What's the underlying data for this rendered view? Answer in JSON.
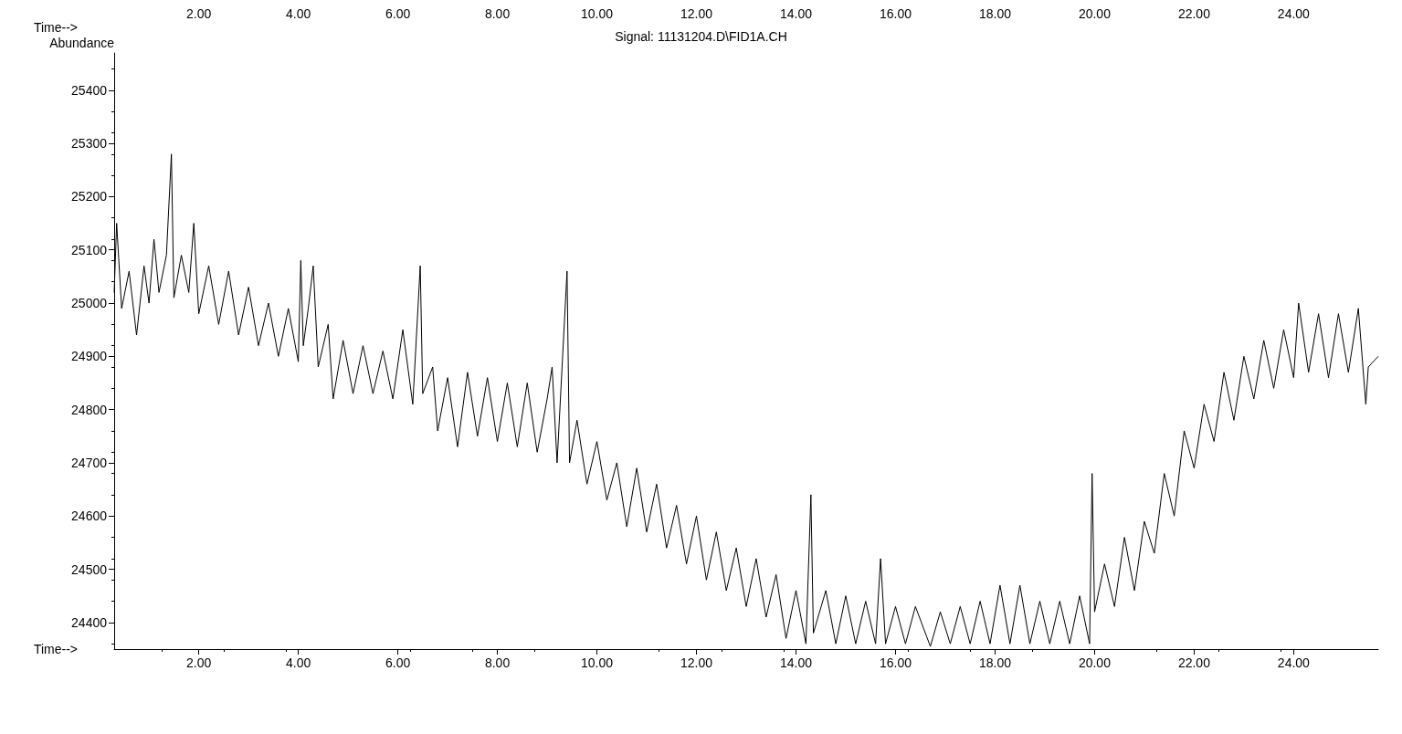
{
  "chart_data": {
    "type": "line",
    "title": "Signal: 11131204.D\\FID1A.CH",
    "xlabel": "Time-->",
    "ylabel": "Abundance",
    "x2label": "Time-->",
    "xlim": [
      0.3,
      25.7
    ],
    "ylim": [
      24350,
      25470
    ],
    "xticks": [
      {
        "value": 2,
        "label": "2.00"
      },
      {
        "value": 4,
        "label": "4.00"
      },
      {
        "value": 6,
        "label": "6.00"
      },
      {
        "value": 8,
        "label": "8.00"
      },
      {
        "value": 10,
        "label": "10.00"
      },
      {
        "value": 12,
        "label": "12.00"
      },
      {
        "value": 14,
        "label": "14.00"
      },
      {
        "value": 16,
        "label": "16.00"
      },
      {
        "value": 18,
        "label": "18.00"
      },
      {
        "value": 20,
        "label": "20.00"
      },
      {
        "value": 22,
        "label": "22.00"
      },
      {
        "value": 24,
        "label": "24.00"
      }
    ],
    "x2lim": [
      0.3,
      25.7
    ],
    "x2ticks": [
      {
        "value": 2,
        "label": "2.00"
      },
      {
        "value": 4,
        "label": "4.00"
      },
      {
        "value": 6,
        "label": "6.00"
      },
      {
        "value": 8,
        "label": "8.00"
      },
      {
        "value": 10,
        "label": "10.00"
      },
      {
        "value": 12,
        "label": "12.00"
      },
      {
        "value": 14,
        "label": "14.00"
      },
      {
        "value": 16,
        "label": "16.00"
      },
      {
        "value": 18,
        "label": "18.00"
      },
      {
        "value": 20,
        "label": "20.00"
      },
      {
        "value": 22,
        "label": "22.00"
      },
      {
        "value": 24,
        "label": "24.00"
      }
    ],
    "yticks": [
      24400,
      24500,
      24600,
      24700,
      24800,
      24900,
      25000,
      25100,
      25200,
      25300,
      25400
    ],
    "grid": false,
    "marker": "none",
    "line_style": "solid",
    "series": [
      {
        "color": "#000000",
        "x": [
          0.3,
          0.35,
          0.45,
          0.6,
          0.75,
          0.9,
          1.0,
          1.1,
          1.2,
          1.35,
          1.45,
          1.5,
          1.65,
          1.8,
          1.9,
          2.0,
          2.2,
          2.4,
          2.6,
          2.8,
          3.0,
          3.2,
          3.4,
          3.6,
          3.8,
          4.0,
          4.05,
          4.1,
          4.2,
          4.3,
          4.4,
          4.6,
          4.7,
          4.9,
          5.1,
          5.3,
          5.5,
          5.7,
          5.9,
          6.1,
          6.3,
          6.45,
          6.5,
          6.7,
          6.8,
          7.0,
          7.2,
          7.4,
          7.6,
          7.8,
          8.0,
          8.2,
          8.4,
          8.6,
          8.8,
          9.0,
          9.1,
          9.2,
          9.4,
          9.45,
          9.6,
          9.8,
          10.0,
          10.2,
          10.4,
          10.6,
          10.8,
          11.0,
          11.2,
          11.4,
          11.6,
          11.8,
          12.0,
          12.2,
          12.4,
          12.6,
          12.8,
          13.0,
          13.2,
          13.4,
          13.6,
          13.8,
          14.0,
          14.2,
          14.3,
          14.35,
          14.6,
          14.8,
          15.0,
          15.2,
          15.4,
          15.6,
          15.7,
          15.8,
          16.0,
          16.2,
          16.4,
          16.7,
          16.9,
          17.1,
          17.3,
          17.5,
          17.7,
          17.9,
          18.1,
          18.3,
          18.5,
          18.7,
          18.9,
          19.1,
          19.3,
          19.5,
          19.7,
          19.9,
          19.95,
          20.0,
          20.2,
          20.4,
          20.6,
          20.8,
          21.0,
          21.2,
          21.4,
          21.6,
          21.8,
          22.0,
          22.2,
          22.4,
          22.6,
          22.8,
          23.0,
          23.2,
          23.4,
          23.6,
          23.8,
          24.0,
          24.1,
          24.3,
          24.5,
          24.7,
          24.9,
          25.1,
          25.3,
          25.45,
          25.5,
          25.7
        ],
        "values": [
          25020,
          25150,
          24990,
          25060,
          24940,
          25070,
          25000,
          25120,
          25020,
          25090,
          25280,
          25010,
          25090,
          25020,
          25150,
          24980,
          25070,
          24960,
          25060,
          24940,
          25030,
          24920,
          25000,
          24900,
          24990,
          24890,
          25080,
          24920,
          24990,
          25070,
          24880,
          24960,
          24820,
          24930,
          24830,
          24920,
          24830,
          24910,
          24820,
          24950,
          24810,
          25070,
          24830,
          24880,
          24760,
          24860,
          24730,
          24870,
          24750,
          24860,
          24740,
          24850,
          24730,
          24850,
          24720,
          24820,
          24880,
          24700,
          25060,
          24700,
          24780,
          24660,
          24740,
          24630,
          24700,
          24580,
          24690,
          24570,
          24660,
          24540,
          24620,
          24510,
          24600,
          24480,
          24570,
          24460,
          24540,
          24430,
          24520,
          24410,
          24490,
          24370,
          24460,
          24360,
          24640,
          24380,
          24460,
          24360,
          24450,
          24360,
          24440,
          24360,
          24520,
          24360,
          24430,
          24360,
          24430,
          24355,
          24420,
          24360,
          24430,
          24360,
          24440,
          24360,
          24470,
          24360,
          24470,
          24360,
          24440,
          24360,
          24440,
          24360,
          24450,
          24360,
          24680,
          24420,
          24510,
          24430,
          24560,
          24460,
          24590,
          24530,
          24680,
          24600,
          24760,
          24690,
          24810,
          24740,
          24870,
          24780,
          24900,
          24820,
          24930,
          24840,
          24950,
          24860,
          25000,
          24870,
          24980,
          24860,
          24980,
          24870,
          24990,
          24810,
          24880,
          24900
        ]
      }
    ]
  }
}
